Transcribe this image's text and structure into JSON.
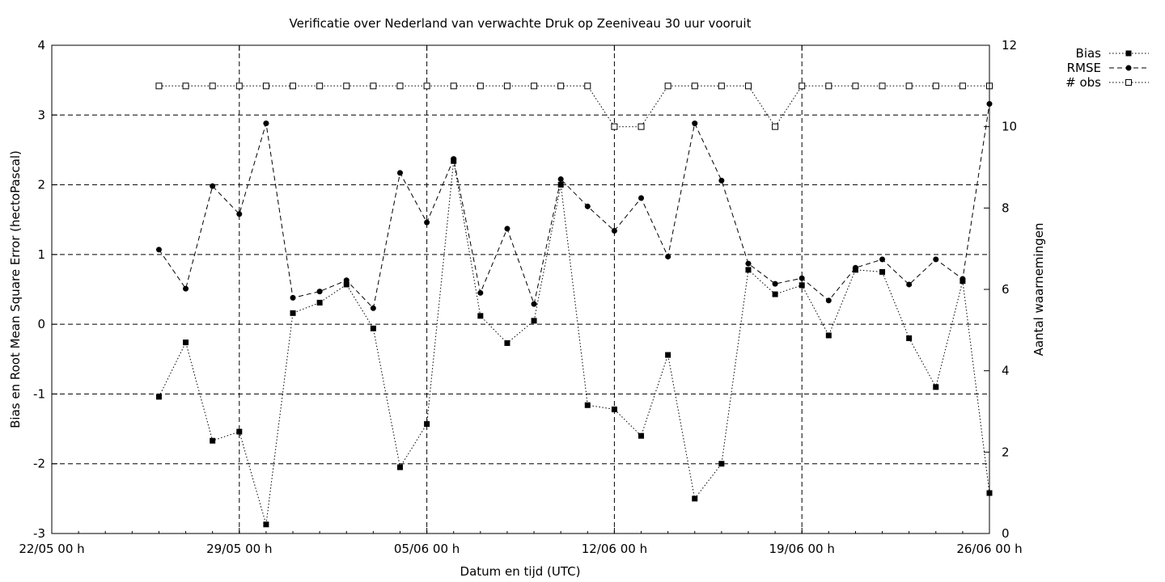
{
  "chart_data": {
    "type": "line",
    "title": "Verificatie over Nederland van verwachte Druk op Zeeniveau 30 uur vooruit",
    "xlabel": "Datum en tijd (UTC)",
    "ylabel": "Bias en Root Mean Square Error (hectoPascal)",
    "y2label": "Aantal waarnemingen",
    "x_axis": {
      "type": "date",
      "range": [
        "2021-05-22",
        "2021-06-26"
      ],
      "ticks": [
        {
          "date": "2021-05-22",
          "label": "22/05 00 h"
        },
        {
          "date": "2021-05-29",
          "label": "29/05 00 h"
        },
        {
          "date": "2021-06-05",
          "label": "05/06 00 h"
        },
        {
          "date": "2021-06-12",
          "label": "12/06 00 h"
        },
        {
          "date": "2021-06-19",
          "label": "19/06 00 h"
        },
        {
          "date": "2021-06-26",
          "label": "26/06 00 h"
        }
      ]
    },
    "y_axis": {
      "range": [
        -3,
        4
      ],
      "ticks": [
        {
          "value": -3,
          "label": "-3"
        },
        {
          "value": -2,
          "label": "-2"
        },
        {
          "value": -1,
          "label": "-1"
        },
        {
          "value": 0,
          "label": "0"
        },
        {
          "value": 1,
          "label": "1"
        },
        {
          "value": 2,
          "label": "2"
        },
        {
          "value": 3,
          "label": "3"
        },
        {
          "value": 4,
          "label": "4"
        }
      ]
    },
    "y2_axis": {
      "range": [
        0,
        12
      ],
      "ticks": [
        {
          "value": 0,
          "label": "0"
        },
        {
          "value": 2,
          "label": "2"
        },
        {
          "value": 4,
          "label": "4"
        },
        {
          "value": 6,
          "label": "6"
        },
        {
          "value": 8,
          "label": "8"
        },
        {
          "value": 10,
          "label": "10"
        },
        {
          "value": 12,
          "label": "12"
        }
      ]
    },
    "grid": true,
    "legend_position": "top-right outside",
    "x": [
      "2021-05-26",
      "2021-05-27",
      "2021-05-28",
      "2021-05-29",
      "2021-05-30",
      "2021-05-31",
      "2021-06-01",
      "2021-06-02",
      "2021-06-03",
      "2021-06-04",
      "2021-06-05",
      "2021-06-06",
      "2021-06-07",
      "2021-06-08",
      "2021-06-09",
      "2021-06-10",
      "2021-06-11",
      "2021-06-12",
      "2021-06-13",
      "2021-06-14",
      "2021-06-15",
      "2021-06-16",
      "2021-06-17",
      "2021-06-18",
      "2021-06-19",
      "2021-06-20",
      "2021-06-21",
      "2021-06-22",
      "2021-06-23",
      "2021-06-24",
      "2021-06-25",
      "2021-06-26"
    ],
    "series": [
      {
        "name": "Bias",
        "axis": "y",
        "marker": "filled-square",
        "line_style": "dotted",
        "values": [
          -1.04,
          -0.26,
          -1.67,
          -1.54,
          -2.87,
          0.16,
          0.31,
          0.57,
          -0.06,
          -2.05,
          -1.43,
          2.34,
          0.12,
          -0.27,
          0.05,
          2.0,
          -1.16,
          -1.22,
          -1.6,
          -0.44,
          -2.5,
          -2.0,
          0.78,
          0.43,
          0.56,
          -0.16,
          0.78,
          0.75,
          -0.2,
          -0.9,
          0.62,
          -2.42
        ]
      },
      {
        "name": "RMSE",
        "axis": "y",
        "marker": "filled-circle",
        "line_style": "dashed",
        "values": [
          1.07,
          0.51,
          1.98,
          1.58,
          2.88,
          0.38,
          0.47,
          0.63,
          0.23,
          2.17,
          1.46,
          2.37,
          0.45,
          1.37,
          0.29,
          2.08,
          1.69,
          1.34,
          1.81,
          0.97,
          2.88,
          2.06,
          0.87,
          0.58,
          0.66,
          0.34,
          0.81,
          0.93,
          0.57,
          0.93,
          0.65,
          3.16
        ]
      },
      {
        "name": "# obs",
        "axis": "y2",
        "marker": "open-square",
        "line_style": "dotted",
        "values": [
          11,
          11,
          11,
          11,
          11,
          11,
          11,
          11,
          11,
          11,
          11,
          11,
          11,
          11,
          11,
          11,
          11,
          10,
          10,
          11,
          11,
          11,
          11,
          10,
          11,
          11,
          11,
          11,
          11,
          11,
          11,
          11
        ]
      }
    ]
  }
}
